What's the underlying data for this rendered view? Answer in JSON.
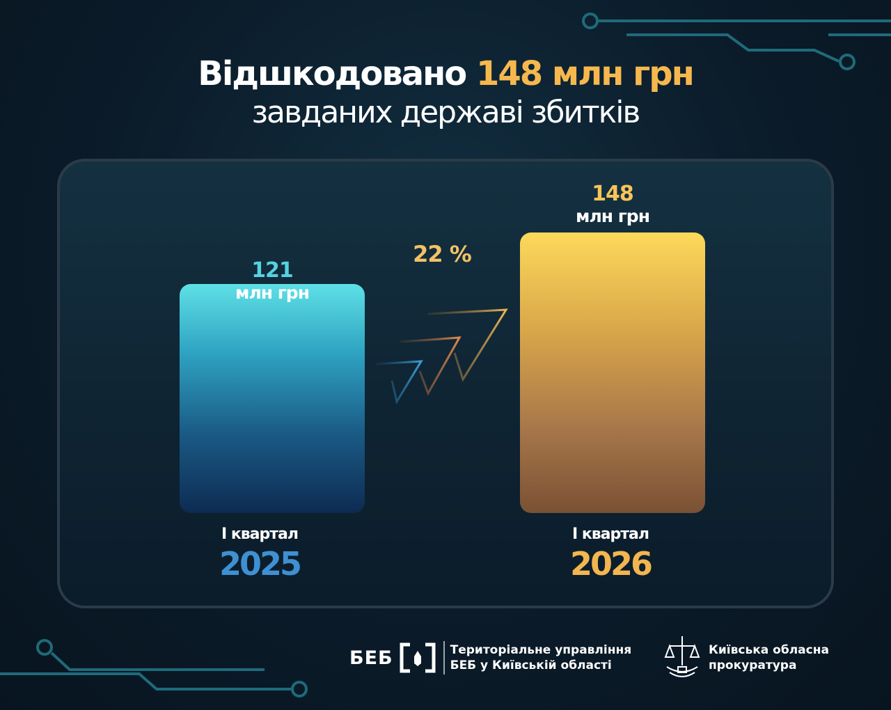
{
  "header": {
    "title_line1_prefix": "Відшкодовано",
    "title_line1_accent": "148 млн грн",
    "title_line2": "завданих державі збитків"
  },
  "chart_data": {
    "type": "bar",
    "title": "Відшкодовано 148 млн грн завданих державі збитків",
    "categories": [
      "2025",
      "2026"
    ],
    "category_sublabel": "І квартал",
    "values": [
      121,
      148
    ],
    "value_unit": "млн грн",
    "value_labels": [
      "121",
      "148"
    ],
    "growth_label": "22 %",
    "colors": [
      "#5ee0e6",
      "#fcd95a"
    ],
    "ylim": [
      0,
      148
    ],
    "grid": false,
    "legend": false
  },
  "footer": {
    "beb_abbr": "БЕБ",
    "beb_name_line1": "Територіальне управління",
    "beb_name_line2": "БЕБ у Київській області",
    "prosecutor_line1": "Київська обласна",
    "prosecutor_line2": "прокуратура"
  }
}
